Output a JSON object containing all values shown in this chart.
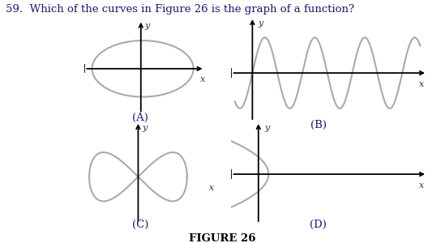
{
  "question_text": "59.  Which of the curves in Figure 26 is the graph of a function?",
  "figure_label": "FIGURE 26",
  "background_color": "#ffffff",
  "curve_color": "#aaaaaa",
  "axis_color": "#000000",
  "text_color": "#1a1a6e",
  "label_color": "#1a1a6e",
  "subfig_labels": [
    "(A)",
    "(B)",
    "(C)",
    "(D)"
  ],
  "question_fontsize": 9.5,
  "label_fontsize": 9.5
}
